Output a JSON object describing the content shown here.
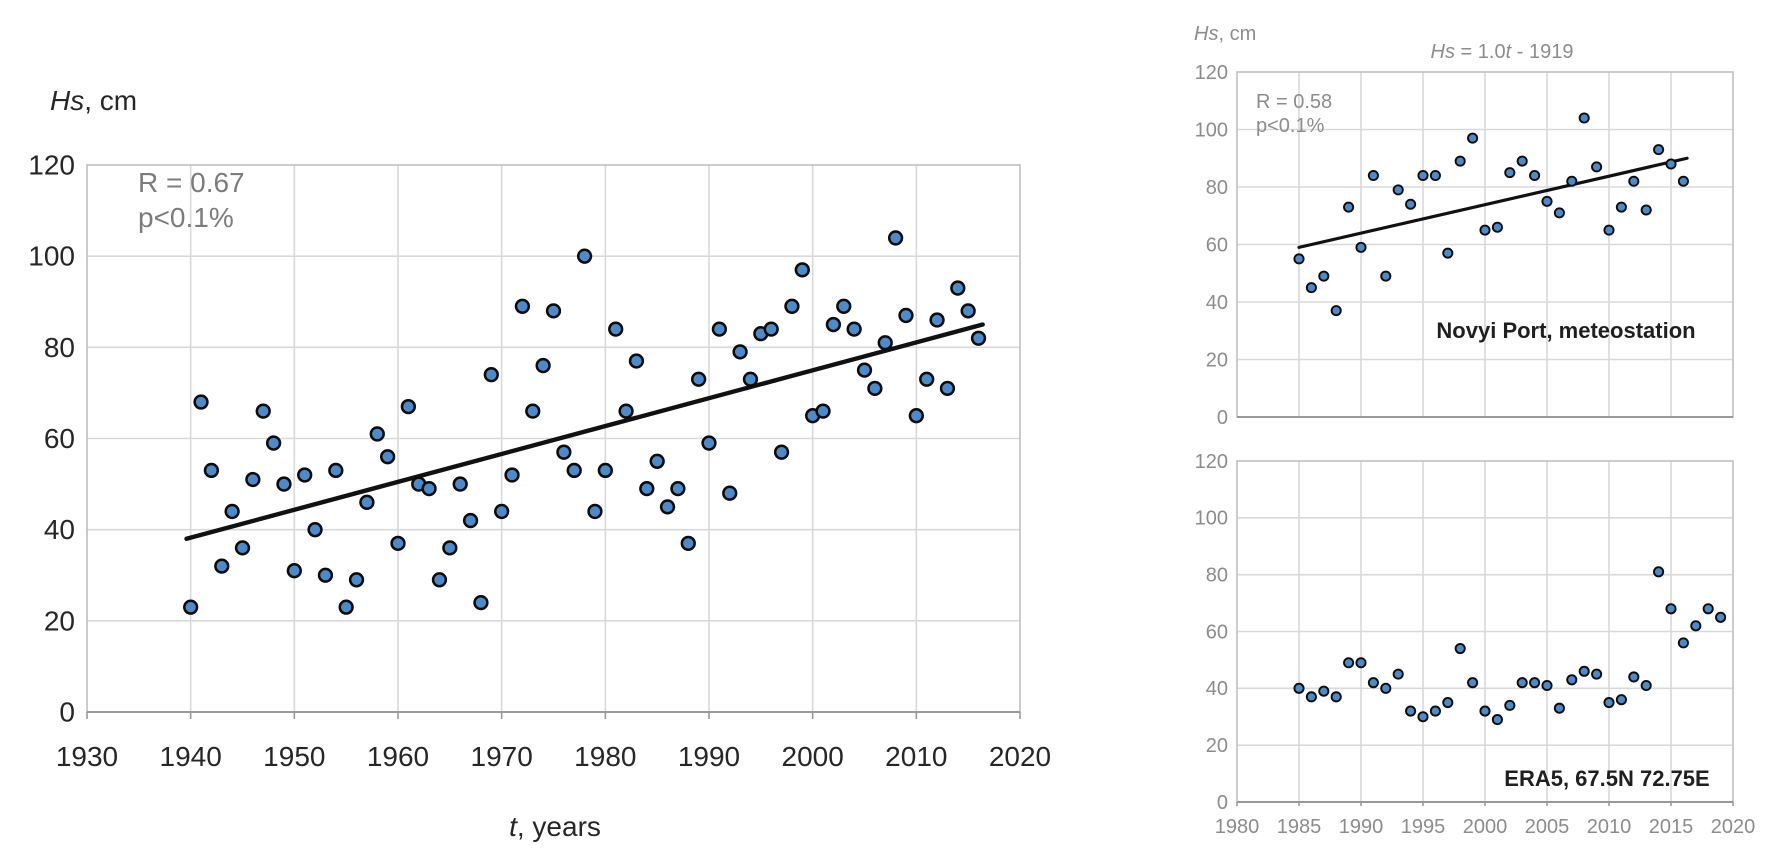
{
  "page": {
    "background": "#FFFFFF",
    "description_labels": {
      "y_axis_unit": "Hs, cm",
      "x_axis_unit": "t, years"
    }
  },
  "colors": {
    "marker_fill": "#4A8BCB",
    "marker_stroke": "#0B0B0B",
    "trend_line": "#111111",
    "grid": "#D9D9D9",
    "frame": "#BFBFBF",
    "axis_line": "#9A9A9A",
    "dark_text": "#262626",
    "gray_annotation": "#7C7C7C",
    "right_gray_text": "#8C8C8C",
    "station_text": "#1F1F1F",
    "background": "#FFFFFF"
  },
  "chart_data": [
    {
      "type": "scatter",
      "name": "main-long-series",
      "ylabel": "Hs, cm",
      "ylabel_segments": [
        [
          "Hs",
          true
        ],
        [
          ", cm",
          false
        ]
      ],
      "xlabel": "t, years",
      "xlabel_segments": [
        [
          "t",
          true
        ],
        [
          ", years",
          false
        ]
      ],
      "annotations": [
        "R = 0.67",
        "p<0.1%"
      ],
      "xlim": [
        1930,
        2020
      ],
      "ylim": [
        0,
        120
      ],
      "xticks": [
        1930,
        1940,
        1950,
        1960,
        1970,
        1980,
        1990,
        2000,
        2010,
        2020
      ],
      "xtick_labels": [
        "1930",
        "1940",
        "1950",
        "1960",
        "1970",
        "1980",
        "1990",
        "2000",
        "2010",
        "2020"
      ],
      "yticks": [
        0,
        20,
        40,
        60,
        80,
        100,
        120
      ],
      "ytick_labels": [
        "0",
        "20",
        "40",
        "60",
        "80",
        "100",
        "120"
      ],
      "grid": true,
      "points": [
        [
          1940,
          23
        ],
        [
          1941,
          68
        ],
        [
          1942,
          53
        ],
        [
          1943,
          32
        ],
        [
          1944,
          44
        ],
        [
          1945,
          36
        ],
        [
          1946,
          51
        ],
        [
          1947,
          66
        ],
        [
          1948,
          59
        ],
        [
          1949,
          50
        ],
        [
          1950,
          31
        ],
        [
          1951,
          52
        ],
        [
          1952,
          40
        ],
        [
          1953,
          30
        ],
        [
          1954,
          53
        ],
        [
          1955,
          23
        ],
        [
          1956,
          29
        ],
        [
          1957,
          46
        ],
        [
          1958,
          61
        ],
        [
          1959,
          56
        ],
        [
          1960,
          37
        ],
        [
          1961,
          67
        ],
        [
          1962,
          50
        ],
        [
          1963,
          49
        ],
        [
          1964,
          29
        ],
        [
          1965,
          36
        ],
        [
          1966,
          50
        ],
        [
          1967,
          42
        ],
        [
          1968,
          24
        ],
        [
          1969,
          74
        ],
        [
          1970,
          44
        ],
        [
          1971,
          52
        ],
        [
          1972,
          89
        ],
        [
          1973,
          66
        ],
        [
          1974,
          76
        ],
        [
          1975,
          88
        ],
        [
          1976,
          57
        ],
        [
          1977,
          53
        ],
        [
          1978,
          100
        ],
        [
          1979,
          44
        ],
        [
          1980,
          53
        ],
        [
          1981,
          84
        ],
        [
          1982,
          66
        ],
        [
          1983,
          77
        ],
        [
          1984,
          49
        ],
        [
          1985,
          55
        ],
        [
          1986,
          45
        ],
        [
          1987,
          49
        ],
        [
          1988,
          37
        ],
        [
          1989,
          73
        ],
        [
          1990,
          59
        ],
        [
          1991,
          84
        ],
        [
          1992,
          48
        ],
        [
          1993,
          79
        ],
        [
          1994,
          73
        ],
        [
          1995,
          83
        ],
        [
          1996,
          84
        ],
        [
          1997,
          57
        ],
        [
          1998,
          89
        ],
        [
          1999,
          97
        ],
        [
          2000,
          65
        ],
        [
          2001,
          66
        ],
        [
          2002,
          85
        ],
        [
          2003,
          89
        ],
        [
          2004,
          84
        ],
        [
          2005,
          75
        ],
        [
          2006,
          71
        ],
        [
          2007,
          81
        ],
        [
          2008,
          104
        ],
        [
          2009,
          87
        ],
        [
          2010,
          65
        ],
        [
          2011,
          73
        ],
        [
          2012,
          86
        ],
        [
          2013,
          71
        ],
        [
          2014,
          93
        ],
        [
          2015,
          88
        ],
        [
          2016,
          82
        ]
      ],
      "trendline": {
        "x1": 1939.6,
        "y1": 38,
        "x2": 2016.4,
        "y2": 85
      }
    },
    {
      "type": "scatter",
      "name": "novyi-port-meteostation",
      "title": "Hs = 1.0t - 1919",
      "title_segments": [
        [
          "Hs",
          true
        ],
        [
          " = 1.0",
          false
        ],
        [
          "t",
          true
        ],
        [
          " - 1919",
          false
        ]
      ],
      "ylabel": "Hs, cm",
      "ylabel_segments": [
        [
          "Hs",
          true
        ],
        [
          ", cm",
          false
        ]
      ],
      "annotations": [
        "R = 0.58",
        "p<0.1%"
      ],
      "station_label": "Novyi Port, meteostation",
      "xlim": [
        1980,
        2020
      ],
      "ylim": [
        0,
        120
      ],
      "xticks": [
        1980,
        1985,
        1990,
        1995,
        2000,
        2005,
        2010,
        2015,
        2020
      ],
      "xtick_labels": [],
      "yticks": [
        0,
        20,
        40,
        60,
        80,
        100,
        120
      ],
      "ytick_labels": [
        "0",
        "20",
        "40",
        "60",
        "80",
        "100",
        "120"
      ],
      "grid": true,
      "points": [
        [
          1985,
          55
        ],
        [
          1986,
          45
        ],
        [
          1987,
          49
        ],
        [
          1988,
          37
        ],
        [
          1989,
          73
        ],
        [
          1990,
          59
        ],
        [
          1991,
          84
        ],
        [
          1992,
          49
        ],
        [
          1993,
          79
        ],
        [
          1994,
          74
        ],
        [
          1995,
          84
        ],
        [
          1996,
          84
        ],
        [
          1997,
          57
        ],
        [
          1998,
          89
        ],
        [
          1999,
          97
        ],
        [
          2000,
          65
        ],
        [
          2001,
          66
        ],
        [
          2002,
          85
        ],
        [
          2003,
          89
        ],
        [
          2004,
          84
        ],
        [
          2005,
          75
        ],
        [
          2006,
          71
        ],
        [
          2007,
          82
        ],
        [
          2008,
          104
        ],
        [
          2009,
          87
        ],
        [
          2010,
          65
        ],
        [
          2011,
          73
        ],
        [
          2012,
          82
        ],
        [
          2013,
          72
        ],
        [
          2014,
          93
        ],
        [
          2015,
          88
        ],
        [
          2016,
          82
        ]
      ],
      "trendline": {
        "x1": 1985,
        "y1": 59,
        "x2": 2016.3,
        "y2": 90
      }
    },
    {
      "type": "scatter",
      "name": "era5-reanalysis",
      "station_label": "ERA5, 67.5N 72.75E",
      "xlim": [
        1980,
        2020
      ],
      "ylim": [
        0,
        120
      ],
      "xticks": [
        1980,
        1985,
        1990,
        1995,
        2000,
        2005,
        2010,
        2015,
        2020
      ],
      "xtick_labels": [
        "1980",
        "1985",
        "1990",
        "1995",
        "2000",
        "2005",
        "2010",
        "2015",
        "2020"
      ],
      "yticks": [
        0,
        20,
        40,
        60,
        80,
        100,
        120
      ],
      "ytick_labels": [
        "0",
        "20",
        "40",
        "60",
        "80",
        "100",
        "120"
      ],
      "grid": true,
      "points": [
        [
          1985,
          40
        ],
        [
          1986,
          37
        ],
        [
          1987,
          39
        ],
        [
          1988,
          37
        ],
        [
          1989,
          49
        ],
        [
          1990,
          49
        ],
        [
          1991,
          42
        ],
        [
          1992,
          40
        ],
        [
          1993,
          45
        ],
        [
          1994,
          32
        ],
        [
          1995,
          30
        ],
        [
          1996,
          32
        ],
        [
          1997,
          35
        ],
        [
          1998,
          54
        ],
        [
          1999,
          42
        ],
        [
          2000,
          32
        ],
        [
          2001,
          29
        ],
        [
          2002,
          34
        ],
        [
          2003,
          42
        ],
        [
          2004,
          42
        ],
        [
          2005,
          41
        ],
        [
          2006,
          33
        ],
        [
          2007,
          43
        ],
        [
          2008,
          46
        ],
        [
          2009,
          45
        ],
        [
          2010,
          35
        ],
        [
          2011,
          36
        ],
        [
          2012,
          44
        ],
        [
          2013,
          41
        ],
        [
          2014,
          81
        ],
        [
          2015,
          68
        ],
        [
          2016,
          56
        ],
        [
          2017,
          62
        ],
        [
          2018,
          68
        ],
        [
          2019,
          65
        ]
      ],
      "trendline": null
    }
  ]
}
